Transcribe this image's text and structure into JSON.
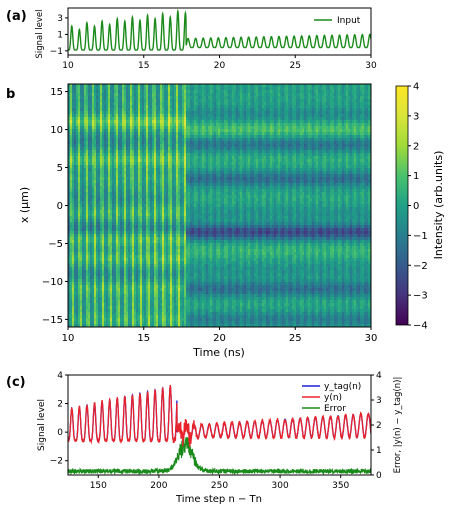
{
  "chart_data": [
    {
      "panel_label": "(a)",
      "type": "line",
      "xlim": [
        10,
        30
      ],
      "ylim": [
        -1.5,
        4.2
      ],
      "xticks": [
        10,
        15,
        20,
        25,
        30
      ],
      "yticks": [
        -1,
        1,
        3
      ],
      "xlabel": "",
      "ylabel": "Signal level",
      "legend_position": "top-right",
      "series": [
        {
          "name": "Input",
          "color": "#1a8a1a",
          "segments": [
            {
              "x_start": 10.0,
              "x_end": 17.8,
              "period": 0.5,
              "peaks": [
                2.0,
                1.6,
                2.4,
                2.0,
                2.6,
                2.2,
                2.9,
                2.6,
                3.1,
                2.7,
                3.3,
                2.9,
                3.5,
                3.1,
                3.8,
                3.6
              ],
              "trough": -0.9
            },
            {
              "x_start": 17.8,
              "x_end": 30.0,
              "period": 0.5,
              "peak_start": 0.5,
              "peak_end": 1.0,
              "trough": -0.6
            }
          ]
        }
      ]
    },
    {
      "panel_label": "b",
      "type": "heatmap",
      "xlim": [
        10,
        30
      ],
      "ylim": [
        -16,
        16
      ],
      "xticks": [
        10,
        15,
        20,
        25,
        30
      ],
      "yticks": [
        -15,
        -10,
        -5,
        0,
        5,
        10,
        15
      ],
      "xlabel": "Time (ns)",
      "ylabel": "x (μm)",
      "colorbar": {
        "label": "Intensity (arb.units)",
        "range": [
          -4,
          4
        ],
        "ticks": [
          -4,
          -3,
          -2,
          -1,
          0,
          1,
          2,
          3,
          4
        ],
        "colormap": "viridis"
      }
    },
    {
      "panel_label": "(c)",
      "type": "line",
      "xlim": [
        125,
        375
      ],
      "ylim_left": [
        -3,
        4
      ],
      "ylim_right": [
        0,
        4
      ],
      "xticks": [
        150,
        200,
        250,
        300,
        350
      ],
      "yticks_left": [
        -2,
        0,
        2,
        4
      ],
      "yticks_right": [
        0,
        1,
        2,
        3,
        4
      ],
      "xlabel": "Time step n − Tn",
      "ylabel": "Signal level",
      "ylabel_right": "Error, |y(n) − y_tag(n)|",
      "legend_position": "top-right",
      "series": [
        {
          "name": "y_tag(n)",
          "color": "#1f1fd6",
          "axis": "left"
        },
        {
          "name": "y(n)",
          "color": "#e8232b",
          "axis": "left"
        },
        {
          "name": "Error",
          "color": "#1a8a1a",
          "axis": "right"
        }
      ],
      "signal": {
        "period": 6.25,
        "regime1_end": 215,
        "regime1_trough": -0.6,
        "regime1_peak_start": 1.6,
        "regime1_peak_end": 3.3,
        "regime2_trough": -0.4,
        "regime2_peak_start": 0.4,
        "regime2_peak_end": 1.3,
        "error_baseline": 0.15,
        "error_burst_center": 222,
        "error_burst_peak": 1.35
      }
    }
  ]
}
